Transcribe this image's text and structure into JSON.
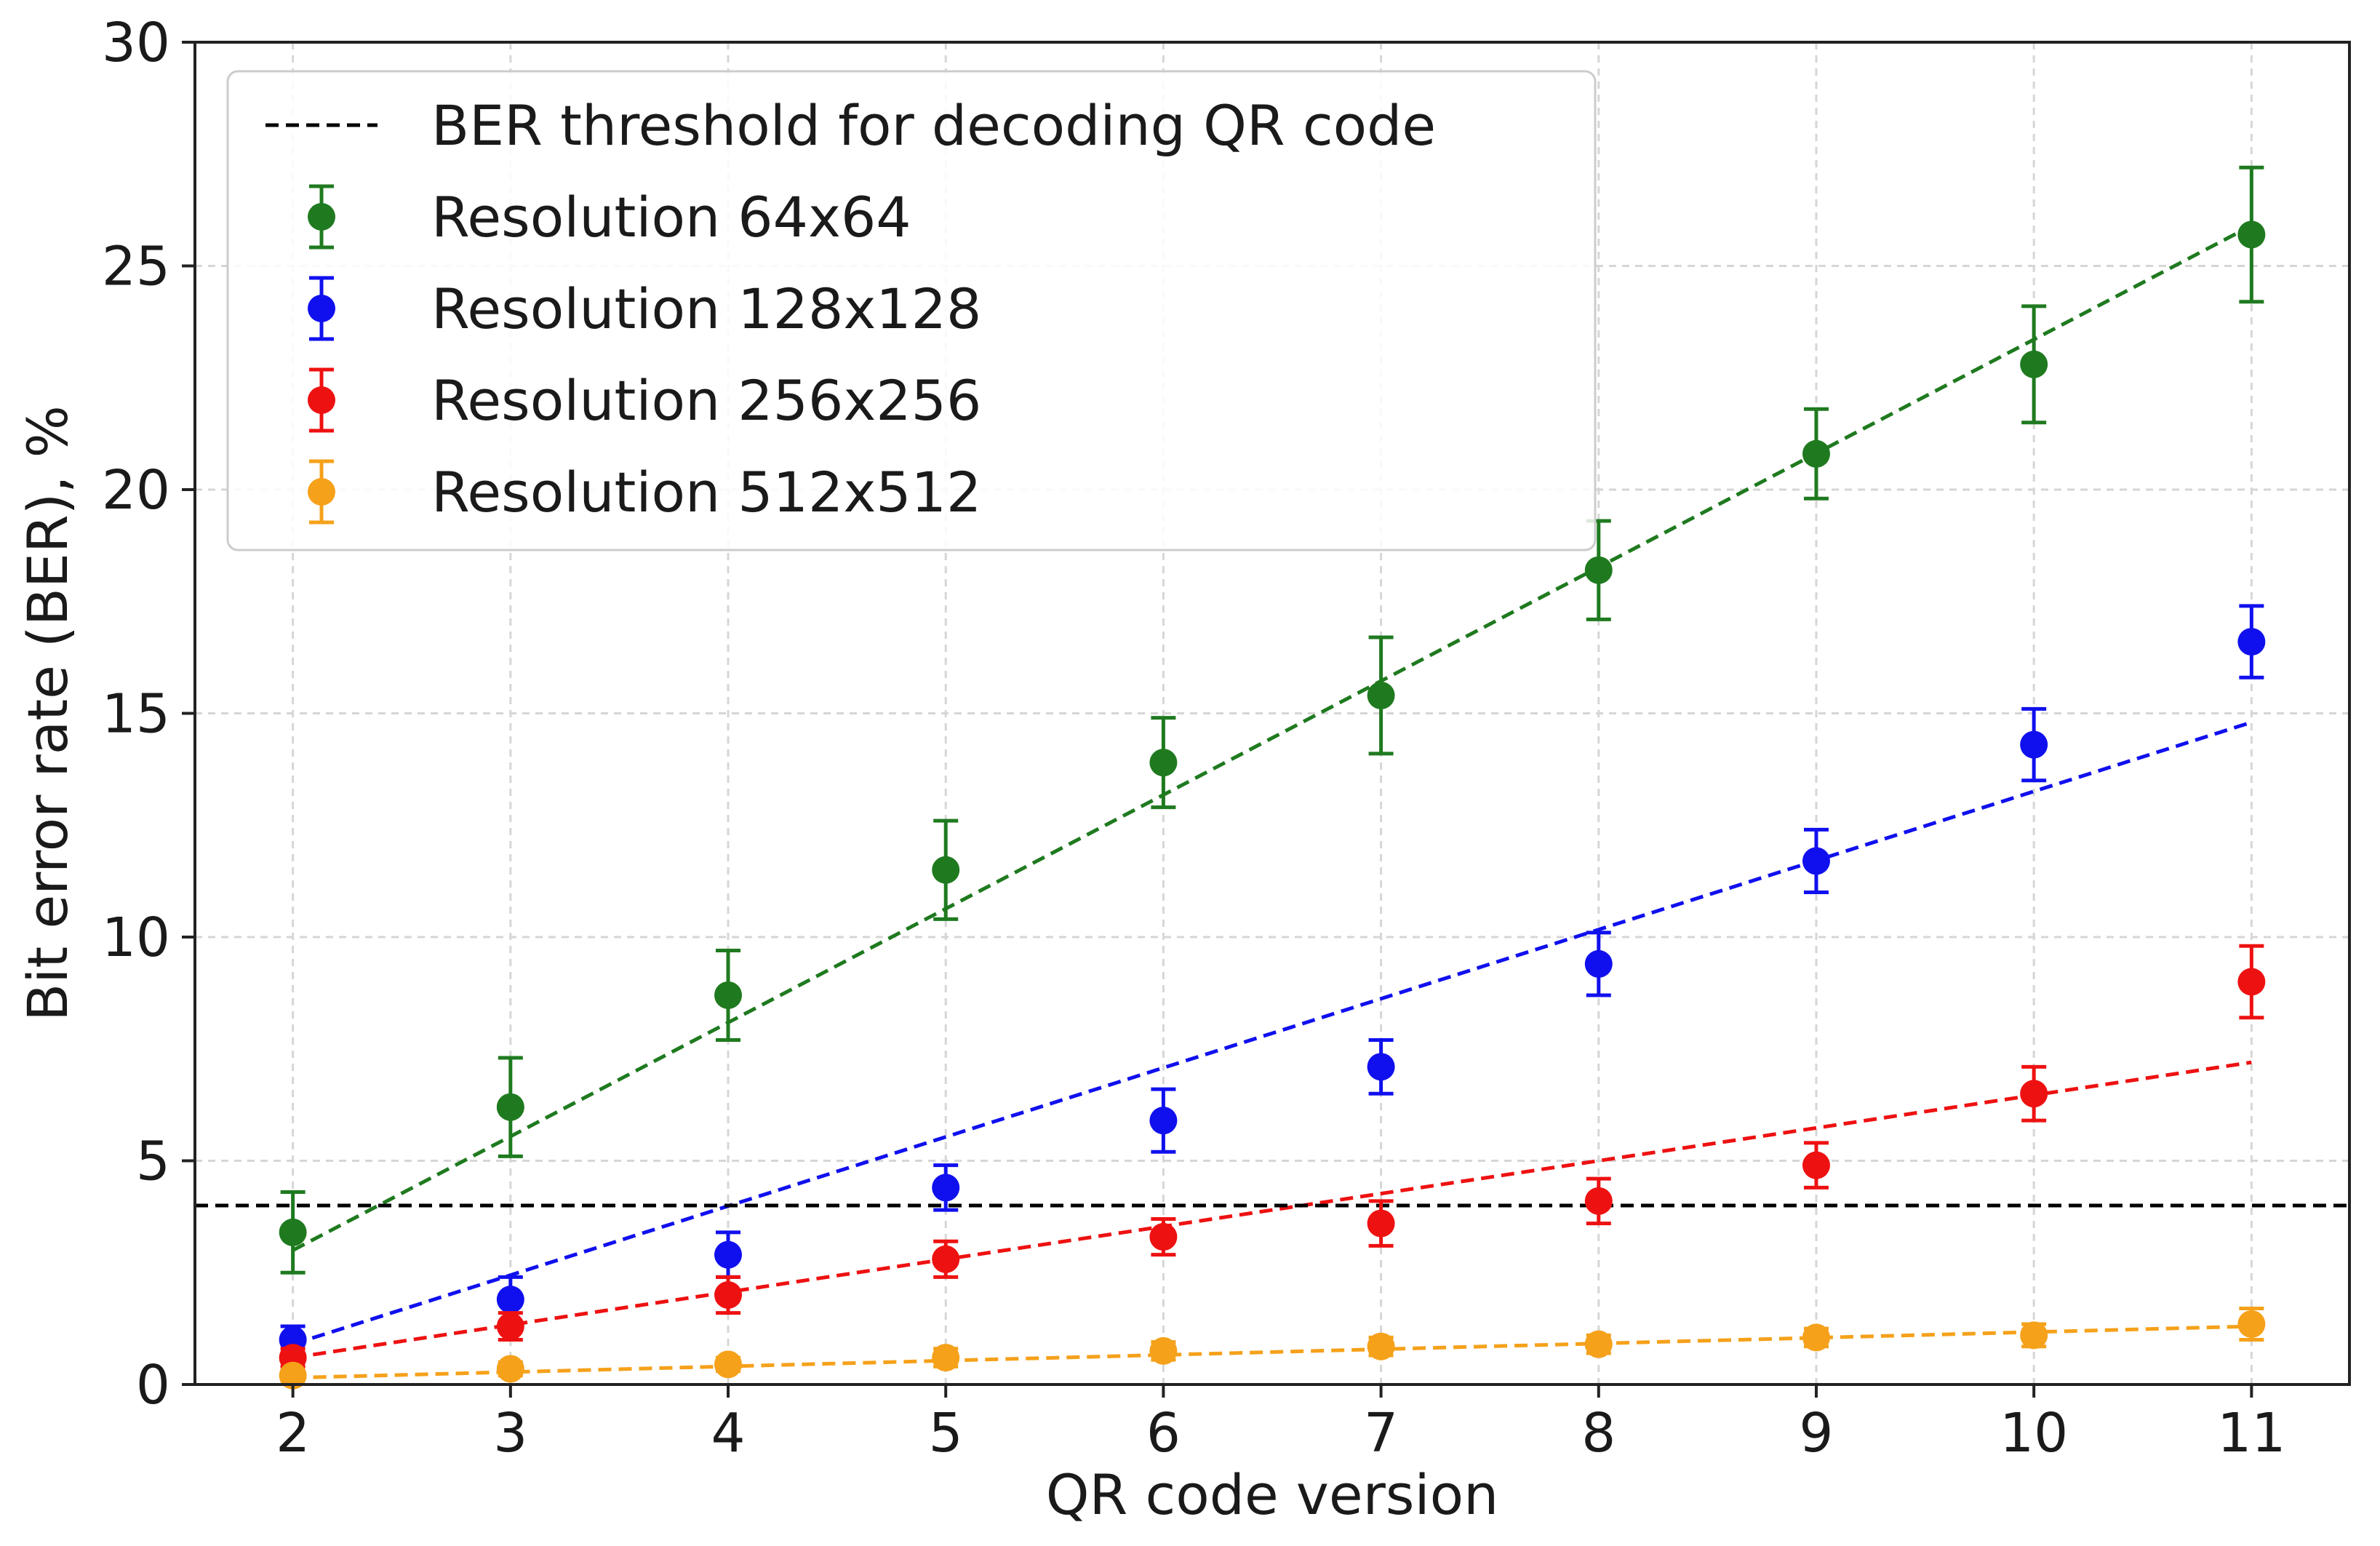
{
  "chart_data": {
    "type": "scatter",
    "xlabel": "QR code version",
    "ylabel": "Bit error rate (BER), %",
    "x": [
      2,
      3,
      4,
      5,
      6,
      7,
      8,
      9,
      10,
      11
    ],
    "xlim": [
      1.55,
      11.45
    ],
    "ylim": [
      0,
      30
    ],
    "xticks": [
      2,
      3,
      4,
      5,
      6,
      7,
      8,
      9,
      10,
      11
    ],
    "yticks": [
      0,
      5,
      10,
      15,
      20,
      25,
      30
    ],
    "grid": true,
    "legend_position": "top-left",
    "threshold": {
      "name": "BER threshold for decoding QR code",
      "value": 4.0,
      "color": "#000000"
    },
    "series": [
      {
        "name": "Resolution 64x64",
        "color": "#1f7a1f",
        "values": [
          3.4,
          6.2,
          8.7,
          11.5,
          13.9,
          15.4,
          18.2,
          20.8,
          22.8,
          25.7
        ],
        "errors": [
          0.9,
          1.1,
          1.0,
          1.1,
          1.0,
          1.3,
          1.1,
          1.0,
          1.3,
          1.5
        ],
        "fit": [
          3.0,
          25.9
        ]
      },
      {
        "name": "Resolution 128x128",
        "color": "#1010ee",
        "values": [
          1.0,
          1.9,
          2.9,
          4.4,
          5.9,
          7.1,
          9.4,
          11.7,
          14.3,
          16.6
        ],
        "errors": [
          0.3,
          0.5,
          0.5,
          0.5,
          0.7,
          0.6,
          0.7,
          0.7,
          0.8,
          0.8
        ],
        "fit": [
          0.9,
          14.8
        ]
      },
      {
        "name": "Resolution 256x256",
        "color": "#ee1111",
        "values": [
          0.6,
          1.3,
          2.0,
          2.8,
          3.3,
          3.6,
          4.1,
          4.9,
          6.5,
          9.0
        ],
        "errors": [
          0.2,
          0.3,
          0.4,
          0.4,
          0.4,
          0.5,
          0.5,
          0.5,
          0.6,
          0.8
        ],
        "fit": [
          0.6,
          7.2
        ]
      },
      {
        "name": "Resolution 512x512",
        "color": "#f5a11a",
        "values": [
          0.2,
          0.35,
          0.45,
          0.6,
          0.75,
          0.85,
          0.9,
          1.05,
          1.1,
          1.35
        ],
        "errors": [
          0.1,
          0.15,
          0.15,
          0.2,
          0.2,
          0.2,
          0.2,
          0.2,
          0.25,
          0.35
        ],
        "fit": [
          0.15,
          1.3
        ]
      }
    ]
  }
}
